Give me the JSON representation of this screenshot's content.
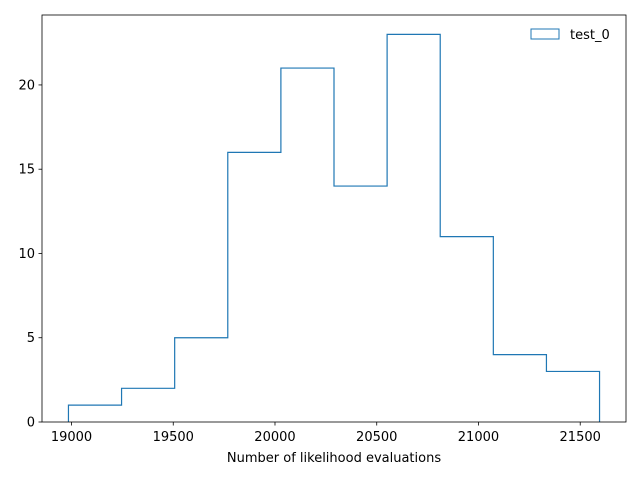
{
  "chart_data": {
    "type": "bar",
    "style": "step-histogram",
    "series": [
      {
        "name": "test_0",
        "color": "#1f77b4",
        "bin_edges": [
          18985,
          19246,
          19507,
          19768,
          20029,
          20290,
          20551,
          20812,
          21073,
          21334,
          21595
        ],
        "counts": [
          1,
          2,
          5,
          16,
          21,
          14,
          23,
          11,
          4,
          3
        ]
      }
    ],
    "xlabel": "Number of likelihood evaluations",
    "ylabel": "",
    "xlim": [
      18855,
      21725
    ],
    "ylim": [
      0,
      24.15
    ],
    "xticks": [
      19000,
      19500,
      20000,
      20500,
      21000,
      21500
    ],
    "yticks": [
      0,
      5,
      10,
      15,
      20
    ],
    "legend_position": "top-right",
    "grid": false
  }
}
